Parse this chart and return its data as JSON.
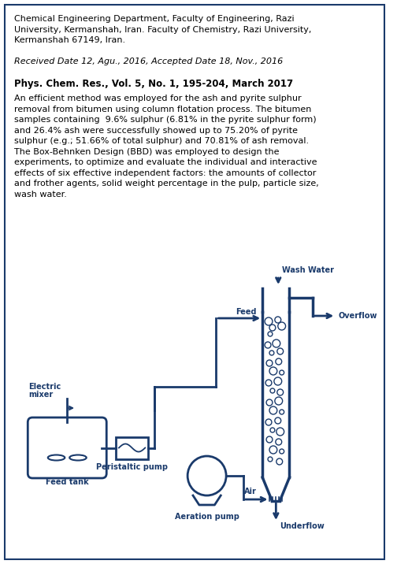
{
  "border_color": "#1a3a6b",
  "bg_color": "#ffffff",
  "line1": "Chemical Engineering Department, Faculty of Engineering, Razi",
  "line2": "University, Kermanshah, Iran. Faculty of Chemistry, Razi University,",
  "line3": "Kermanshah 67149, Iran.",
  "received": "Received Date 12, Agu., 2016, Accepted Date 18, Nov., 2016",
  "journal": "Phys. Chem. Res., Vol. 5, No. 1, 195-204, March 2017",
  "abstract_lines": [
    "An efficient method was employed for the ash and pyrite sulphur",
    "removal from bitumen using column flotation process. The bitumen",
    "samples containing  9.6% sulphur (6.81% in the pyrite sulphur form)",
    "and 26.4% ash were successfully showed up to 75.20% of pyrite",
    "sulphur (e.g.; 51.66% of total sulphur) and 70.81% of ash removal.",
    "The Box-Behnken Design (BBD) was employed to design the",
    "experiments, to optimize and evaluate the individual and interactive",
    "effects of six effective independent factors: the amounts of collector",
    "and frother agents, solid weight percentage in the pulp, particle size,",
    "wash water."
  ]
}
